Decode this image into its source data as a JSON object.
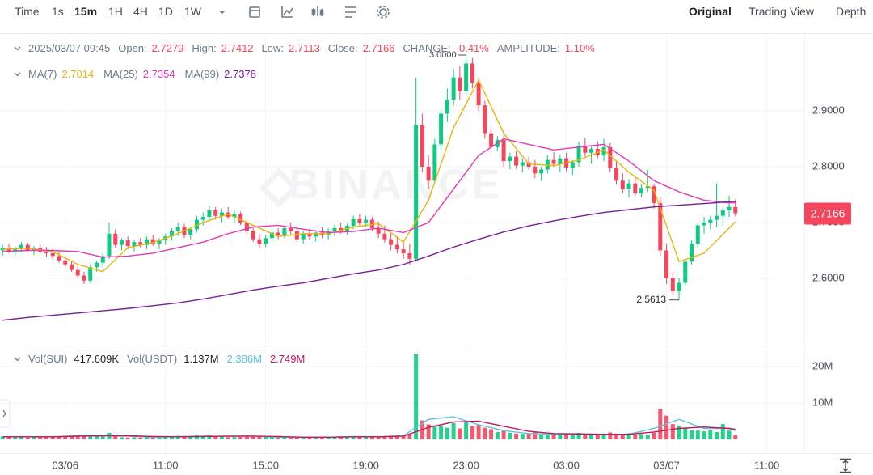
{
  "toolbar": {
    "intervals": [
      "Time",
      "1s",
      "15m",
      "1H",
      "4H",
      "1D",
      "1W"
    ],
    "views": [
      "Original",
      "Trading View",
      "Depth"
    ]
  },
  "chart_data": {
    "type": "candlestick",
    "watermark": "BINANCE",
    "info": {
      "time": "2025/03/07 09:45",
      "open": "Open:",
      "high": "High:",
      "low": "Low:",
      "close": "Close:",
      "change_label": "CHANGE:",
      "change": "-0.41%",
      "amplitude_label": "AMPLITUDE:",
      "amplitude": "1.10%"
    },
    "up_color": "#0ecb81",
    "down_color": "#f6465d",
    "xlim": [
      -0.42,
      128.0
    ],
    "xticks": [
      {
        "value": 10,
        "label": "03/06"
      },
      {
        "value": 26,
        "label": "11:00"
      },
      {
        "value": 42,
        "label": "15:00"
      },
      {
        "value": 58,
        "label": "19:00"
      },
      {
        "value": 74,
        "label": "23:00"
      },
      {
        "value": 90,
        "label": "03:00"
      },
      {
        "value": 106,
        "label": "03/07"
      },
      {
        "value": 122,
        "label": "11:00"
      }
    ],
    "ylim": [
      2.4797,
      3.0377
    ],
    "yticks": [
      {
        "value": 2.9,
        "label": "2.9000"
      },
      {
        "value": 2.8,
        "label": "2.8000"
      },
      {
        "value": 2.7,
        "label": "2.7000"
      },
      {
        "value": 2.6,
        "label": "2.6000"
      }
    ],
    "grid": true,
    "high_label": "3.0000",
    "ohlc": [
      [
        2.65,
        2.66,
        2.64,
        2.655
      ],
      [
        2.655,
        2.662,
        2.645,
        2.648
      ],
      [
        2.648,
        2.658,
        2.64,
        2.652
      ],
      [
        2.652,
        2.665,
        2.646,
        2.66
      ],
      [
        2.66,
        2.664,
        2.648,
        2.65
      ],
      [
        2.65,
        2.658,
        2.642,
        2.655
      ],
      [
        2.655,
        2.66,
        2.645,
        2.648
      ],
      [
        2.648,
        2.656,
        2.638,
        2.645
      ],
      [
        2.645,
        2.652,
        2.634,
        2.64
      ],
      [
        2.64,
        2.648,
        2.628,
        2.632
      ],
      [
        2.632,
        2.64,
        2.62,
        2.625
      ],
      [
        2.625,
        2.632,
        2.612,
        2.615
      ],
      [
        2.615,
        2.622,
        2.6,
        2.605
      ],
      [
        2.605,
        2.612,
        2.59,
        2.596
      ],
      [
        2.596,
        2.625,
        2.592,
        2.62
      ],
      [
        2.62,
        2.632,
        2.612,
        2.628
      ],
      [
        2.628,
        2.645,
        2.62,
        2.64
      ],
      [
        2.64,
        2.7,
        2.635,
        2.68
      ],
      [
        2.68,
        2.688,
        2.655,
        2.66
      ],
      [
        2.66,
        2.672,
        2.65,
        2.668
      ],
      [
        2.668,
        2.675,
        2.652,
        2.658
      ],
      [
        2.658,
        2.67,
        2.648,
        2.665
      ],
      [
        2.665,
        2.672,
        2.655,
        2.66
      ],
      [
        2.66,
        2.675,
        2.652,
        2.67
      ],
      [
        2.67,
        2.678,
        2.658,
        2.662
      ],
      [
        2.662,
        2.672,
        2.652,
        2.668
      ],
      [
        2.668,
        2.68,
        2.66,
        2.675
      ],
      [
        2.675,
        2.69,
        2.668,
        2.685
      ],
      [
        2.685,
        2.7,
        2.676,
        2.692
      ],
      [
        2.692,
        2.698,
        2.672,
        2.678
      ],
      [
        2.678,
        2.69,
        2.67,
        2.688
      ],
      [
        2.688,
        2.712,
        2.682,
        2.705
      ],
      [
        2.705,
        2.718,
        2.695,
        2.71
      ],
      [
        2.71,
        2.73,
        2.702,
        2.722
      ],
      [
        2.722,
        2.728,
        2.705,
        2.712
      ],
      [
        2.712,
        2.725,
        2.7,
        2.718
      ],
      [
        2.718,
        2.728,
        2.706,
        2.71
      ],
      [
        2.71,
        2.722,
        2.7,
        2.716
      ],
      [
        2.716,
        2.72,
        2.695,
        2.7
      ],
      [
        2.7,
        2.706,
        2.68,
        2.685
      ],
      [
        2.685,
        2.692,
        2.665,
        2.67
      ],
      [
        2.67,
        2.68,
        2.655,
        2.662
      ],
      [
        2.662,
        2.678,
        2.656,
        2.672
      ],
      [
        2.672,
        2.688,
        2.665,
        2.682
      ],
      [
        2.682,
        2.69,
        2.67,
        2.678
      ],
      [
        2.678,
        2.695,
        2.672,
        2.69
      ],
      [
        2.69,
        2.7,
        2.676,
        2.684
      ],
      [
        2.684,
        2.692,
        2.664,
        2.67
      ],
      [
        2.67,
        2.685,
        2.662,
        2.68
      ],
      [
        2.68,
        2.688,
        2.668,
        2.675
      ],
      [
        2.675,
        2.686,
        2.666,
        2.682
      ],
      [
        2.682,
        2.692,
        2.672,
        2.678
      ],
      [
        2.678,
        2.69,
        2.67,
        2.685
      ],
      [
        2.685,
        2.696,
        2.676,
        2.69
      ],
      [
        2.69,
        2.7,
        2.68,
        2.684
      ],
      [
        2.684,
        2.698,
        2.678,
        2.694
      ],
      [
        2.694,
        2.712,
        2.688,
        2.706
      ],
      [
        2.706,
        2.715,
        2.695,
        2.7
      ],
      [
        2.7,
        2.712,
        2.692,
        2.705
      ],
      [
        2.705,
        2.71,
        2.684,
        2.69
      ],
      [
        2.69,
        2.702,
        2.672,
        2.68
      ],
      [
        2.68,
        2.695,
        2.664,
        2.67
      ],
      [
        2.67,
        2.68,
        2.65,
        2.66
      ],
      [
        2.66,
        2.675,
        2.645,
        2.652
      ],
      [
        2.652,
        2.668,
        2.635,
        2.645
      ],
      [
        2.645,
        2.662,
        2.625,
        2.635
      ],
      [
        2.635,
        2.96,
        2.63,
        2.875
      ],
      [
        2.875,
        2.895,
        2.79,
        2.8
      ],
      [
        2.8,
        2.82,
        2.76,
        2.775
      ],
      [
        2.775,
        2.85,
        2.77,
        2.84
      ],
      [
        2.84,
        2.905,
        2.83,
        2.895
      ],
      [
        2.895,
        2.94,
        2.88,
        2.92
      ],
      [
        2.92,
        2.975,
        2.91,
        2.96
      ],
      [
        2.96,
        2.98,
        2.92,
        2.935
      ],
      [
        2.935,
        3.0,
        2.93,
        2.985
      ],
      [
        2.985,
        2.995,
        2.94,
        2.95
      ],
      [
        2.95,
        2.96,
        2.9,
        2.91
      ],
      [
        2.91,
        2.918,
        2.85,
        2.86
      ],
      [
        2.86,
        2.872,
        2.825,
        2.835
      ],
      [
        2.835,
        2.855,
        2.828,
        2.848
      ],
      [
        2.848,
        2.856,
        2.8,
        2.81
      ],
      [
        2.81,
        2.825,
        2.795,
        2.818
      ],
      [
        2.818,
        2.828,
        2.796,
        2.802
      ],
      [
        2.802,
        2.815,
        2.79,
        2.808
      ],
      [
        2.808,
        2.818,
        2.795,
        2.8
      ],
      [
        2.8,
        2.812,
        2.78,
        2.788
      ],
      [
        2.788,
        2.8,
        2.775,
        2.795
      ],
      [
        2.795,
        2.82,
        2.788,
        2.812
      ],
      [
        2.812,
        2.826,
        2.8,
        2.805
      ],
      [
        2.805,
        2.822,
        2.79,
        2.815
      ],
      [
        2.815,
        2.825,
        2.792,
        2.798
      ],
      [
        2.798,
        2.812,
        2.785,
        2.808
      ],
      [
        2.808,
        2.845,
        2.8,
        2.838
      ],
      [
        2.838,
        2.852,
        2.818,
        2.825
      ],
      [
        2.825,
        2.838,
        2.805,
        2.832
      ],
      [
        2.832,
        2.845,
        2.815,
        2.82
      ],
      [
        2.82,
        2.85,
        2.81,
        2.835
      ],
      [
        2.835,
        2.842,
        2.79,
        2.798
      ],
      [
        2.798,
        2.81,
        2.768,
        2.775
      ],
      [
        2.775,
        2.788,
        2.752,
        2.76
      ],
      [
        2.76,
        2.778,
        2.745,
        2.77
      ],
      [
        2.77,
        2.78,
        2.748,
        2.752
      ],
      [
        2.752,
        2.768,
        2.745,
        2.762
      ],
      [
        2.762,
        2.795,
        2.755,
        2.765
      ],
      [
        2.765,
        2.77,
        2.725,
        2.735
      ],
      [
        2.735,
        2.745,
        2.64,
        2.65
      ],
      [
        2.65,
        2.662,
        2.59,
        2.6
      ],
      [
        2.6,
        2.61,
        2.57,
        2.578
      ],
      [
        2.578,
        2.6,
        2.5613,
        2.592
      ],
      [
        2.592,
        2.635,
        2.588,
        2.63
      ],
      [
        2.63,
        2.668,
        2.625,
        2.662
      ],
      [
        2.662,
        2.7,
        2.655,
        2.695
      ],
      [
        2.695,
        2.71,
        2.68,
        2.7
      ],
      [
        2.7,
        2.712,
        2.688,
        2.705
      ],
      [
        2.705,
        2.77,
        2.692,
        2.712
      ],
      [
        2.712,
        2.728,
        2.695,
        2.722
      ],
      [
        2.722,
        2.748,
        2.71,
        2.728
      ],
      [
        2.7279,
        2.7412,
        2.7113,
        2.7166
      ]
    ],
    "ma_index": [
      0,
      4,
      8,
      12,
      16,
      20,
      24,
      28,
      32,
      36,
      40,
      44,
      48,
      52,
      56,
      60,
      64,
      68,
      72,
      76,
      80,
      84,
      88,
      92,
      96,
      100,
      104,
      108,
      112,
      116,
      117
    ],
    "series": [
      {
        "name": "MA(7)",
        "color": "#e8b40c",
        "values": [
          2.652,
          2.654,
          2.648,
          2.625,
          2.612,
          2.655,
          2.664,
          2.68,
          2.7,
          2.715,
          2.695,
          2.675,
          2.68,
          2.68,
          2.692,
          2.698,
          2.665,
          2.74,
          2.87,
          2.955,
          2.86,
          2.805,
          2.802,
          2.812,
          2.83,
          2.79,
          2.758,
          2.63,
          2.645,
          2.69,
          2.7014
        ]
      },
      {
        "name": "MA(25)",
        "color": "#e03bb8",
        "values": [
          2.648,
          2.65,
          2.65,
          2.648,
          2.638,
          2.64,
          2.645,
          2.655,
          2.665,
          2.68,
          2.692,
          2.695,
          2.688,
          2.682,
          2.684,
          2.69,
          2.682,
          2.7,
          2.76,
          2.82,
          2.85,
          2.84,
          2.83,
          2.835,
          2.84,
          2.81,
          2.775,
          2.755,
          2.74,
          2.735,
          2.7354
        ]
      },
      {
        "name": "MA(99)",
        "color": "#7a1d9c",
        "values": [
          2.525,
          2.53,
          2.534,
          2.538,
          2.542,
          2.546,
          2.551,
          2.556,
          2.563,
          2.571,
          2.579,
          2.586,
          2.592,
          2.6,
          2.608,
          2.615,
          2.625,
          2.64,
          2.656,
          2.67,
          2.683,
          2.694,
          2.703,
          2.711,
          2.718,
          2.723,
          2.728,
          2.731,
          2.734,
          2.737,
          2.7378
        ]
      }
    ],
    "volume": {
      "base": "Vol(SUI)",
      "base_value": "417.609K",
      "quote": "Vol(USDT)",
      "quote_value": "1.137M",
      "ylim": [
        -3.78,
        25.11
      ],
      "yticks": [
        {
          "value": 20,
          "label": "20M"
        },
        {
          "value": 10,
          "label": "10M"
        }
      ],
      "values": [
        0.8,
        0.6,
        0.7,
        0.9,
        0.5,
        0.6,
        0.7,
        0.8,
        0.6,
        0.9,
        0.7,
        1.0,
        1.2,
        1.1,
        1.3,
        0.9,
        0.8,
        1.8,
        0.9,
        0.6,
        0.5,
        0.6,
        0.5,
        0.7,
        0.5,
        0.6,
        0.7,
        0.9,
        1.0,
        0.8,
        0.7,
        1.2,
        1.0,
        1.1,
        0.8,
        0.7,
        0.6,
        0.6,
        0.8,
        0.9,
        1.0,
        0.9,
        0.7,
        0.6,
        0.5,
        0.6,
        0.5,
        0.7,
        0.6,
        0.5,
        0.5,
        0.6,
        0.6,
        0.7,
        0.6,
        0.8,
        0.9,
        0.7,
        0.6,
        0.7,
        0.8,
        0.9,
        1.0,
        0.9,
        1.1,
        1.2,
        23.5,
        5.2,
        4.1,
        3.5,
        3.8,
        3.2,
        4.5,
        3.0,
        4.8,
        3.6,
        4.0,
        3.2,
        2.8,
        2.0,
        2.4,
        1.8,
        1.6,
        1.5,
        1.7,
        1.9,
        1.4,
        1.6,
        1.3,
        1.2,
        1.5,
        1.1,
        1.8,
        1.2,
        1.3,
        1.1,
        1.6,
        1.9,
        1.4,
        1.2,
        1.7,
        1.3,
        1.5,
        1.2,
        1.8,
        8.4,
        6.5,
        4.2,
        3.8,
        3.0,
        2.6,
        2.4,
        2.2,
        2.5,
        2.0,
        4.2,
        2.4,
        1.137
      ],
      "series": [
        {
          "color": "#5bc3e0",
          "last_label": "2.386M",
          "values": [
            0.7,
            0.7,
            0.7,
            1.0,
            1.0,
            0.9,
            0.6,
            0.8,
            0.9,
            0.8,
            0.9,
            0.6,
            0.6,
            0.6,
            0.8,
            0.7,
            1.0,
            5.5,
            6.2,
            4.0,
            2.4,
            1.6,
            1.4,
            1.4,
            1.4,
            1.4,
            3.0,
            5.5,
            3.0,
            3.0,
            2.386
          ]
        },
        {
          "color": "#c2185b",
          "last_label": "2.749M",
          "values": [
            0.7,
            0.7,
            0.7,
            0.9,
            1.0,
            1.0,
            0.8,
            0.7,
            0.8,
            0.9,
            0.9,
            0.8,
            0.6,
            0.6,
            0.7,
            0.7,
            0.9,
            3.3,
            4.8,
            5.0,
            3.6,
            2.2,
            1.6,
            1.5,
            1.4,
            1.4,
            2.0,
            3.0,
            3.4,
            3.0,
            2.749
          ]
        }
      ]
    }
  }
}
